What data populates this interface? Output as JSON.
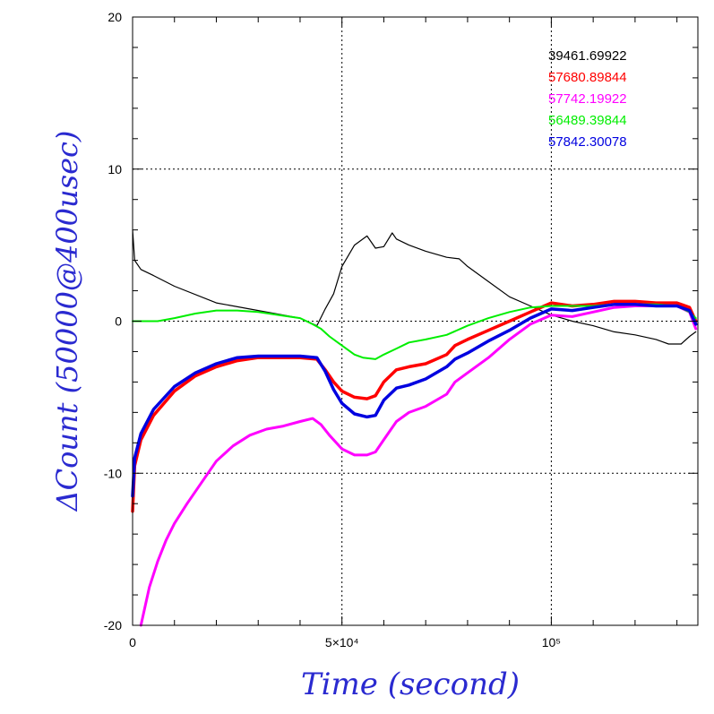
{
  "chart_data": {
    "type": "line",
    "title": "",
    "xlabel": "Time (second)",
    "ylabel": "ΔCount (50000@400usec)",
    "xlim": [
      0,
      135000
    ],
    "ylim": [
      -20,
      20
    ],
    "x_ticks": [
      {
        "value": 0,
        "label": "0"
      },
      {
        "value": 50000,
        "label": "5×10⁴"
      },
      {
        "value": 100000,
        "label": "10⁵"
      }
    ],
    "y_ticks": [
      {
        "value": -20,
        "label": "-20"
      },
      {
        "value": -10,
        "label": "-10"
      },
      {
        "value": 0,
        "label": "0"
      },
      {
        "value": 10,
        "label": "10"
      },
      {
        "value": 20,
        "label": "20"
      }
    ],
    "grid": true,
    "legend_position": "top-right",
    "series": [
      {
        "name": "39461.69922",
        "color": "#000000",
        "stroke_width": 1.2,
        "x": [
          0,
          500,
          2000,
          5000,
          10000,
          20000,
          30000,
          40000,
          44000,
          46000,
          48000,
          50000,
          53000,
          56000,
          58000,
          60000,
          62000,
          63000,
          66000,
          70000,
          75000,
          78000,
          80000,
          85000,
          90000,
          95000,
          100000,
          105000,
          110000,
          115000,
          120000,
          125000,
          128000,
          131000,
          133000,
          134500
        ],
        "y": [
          6,
          4,
          3.4,
          3.0,
          2.3,
          1.2,
          0.7,
          0.2,
          -0.3,
          0.8,
          1.8,
          3.6,
          5.0,
          5.6,
          4.8,
          4.9,
          5.8,
          5.4,
          5.0,
          4.6,
          4.2,
          4.1,
          3.6,
          2.6,
          1.6,
          1.0,
          0.4,
          0.0,
          -0.3,
          -0.7,
          -0.9,
          -1.2,
          -1.5,
          -1.5,
          -1.0,
          -0.7
        ]
      },
      {
        "name": "57680.89844",
        "color": "#ff0000",
        "stroke_width": 3.5,
        "x": [
          0,
          500,
          2000,
          5000,
          10000,
          15000,
          20000,
          25000,
          30000,
          35000,
          40000,
          44000,
          46000,
          48000,
          50000,
          53000,
          56000,
          58000,
          60000,
          63000,
          66000,
          70000,
          75000,
          77000,
          80000,
          85000,
          90000,
          95000,
          100000,
          105000,
          110000,
          115000,
          120000,
          125000,
          130000,
          133000,
          134500
        ],
        "y": [
          -12.5,
          -9.5,
          -7.8,
          -6.2,
          -4.6,
          -3.6,
          -3.0,
          -2.6,
          -2.4,
          -2.4,
          -2.4,
          -2.5,
          -3.2,
          -4.0,
          -4.6,
          -5.0,
          -5.1,
          -4.9,
          -4.0,
          -3.2,
          -3.0,
          -2.8,
          -2.2,
          -1.6,
          -1.2,
          -0.6,
          0.0,
          0.6,
          1.2,
          1.0,
          1.1,
          1.3,
          1.3,
          1.2,
          1.2,
          0.9,
          0.0
        ]
      },
      {
        "name": "57742.19922",
        "color": "#ff00ff",
        "stroke_width": 3,
        "x": [
          2000,
          4000,
          6000,
          8000,
          10000,
          13000,
          16000,
          20000,
          24000,
          28000,
          32000,
          36000,
          40000,
          43000,
          45000,
          47000,
          50000,
          53000,
          56000,
          58000,
          60000,
          63000,
          66000,
          70000,
          75000,
          77000,
          80000,
          85000,
          90000,
          95000,
          100000,
          105000,
          110000,
          115000,
          120000,
          125000,
          130000,
          133000,
          134500
        ],
        "y": [
          -20,
          -17.5,
          -15.8,
          -14.4,
          -13.3,
          -12.0,
          -10.8,
          -9.2,
          -8.2,
          -7.5,
          -7.1,
          -6.9,
          -6.6,
          -6.4,
          -6.8,
          -7.5,
          -8.4,
          -8.8,
          -8.8,
          -8.6,
          -7.8,
          -6.6,
          -6.0,
          -5.6,
          -4.8,
          -4.0,
          -3.4,
          -2.4,
          -1.2,
          -0.2,
          0.4,
          0.3,
          0.6,
          0.9,
          1.0,
          1.0,
          1.0,
          0.6,
          -0.5
        ]
      },
      {
        "name": "56489.39844",
        "color": "#00ee00",
        "stroke_width": 2,
        "x": [
          0,
          3000,
          6000,
          10000,
          15000,
          20000,
          25000,
          30000,
          35000,
          40000,
          43000,
          45000,
          47000,
          50000,
          53000,
          55000,
          58000,
          60000,
          63000,
          66000,
          70000,
          75000,
          80000,
          85000,
          90000,
          95000,
          100000,
          105000,
          110000,
          115000,
          120000,
          125000,
          130000,
          133000,
          134500
        ],
        "y": [
          0,
          0,
          0,
          0.2,
          0.5,
          0.7,
          0.7,
          0.6,
          0.4,
          0.2,
          -0.2,
          -0.5,
          -1.0,
          -1.6,
          -2.2,
          -2.4,
          -2.5,
          -2.2,
          -1.8,
          -1.4,
          -1.2,
          -0.9,
          -0.3,
          0.2,
          0.6,
          0.9,
          1.0,
          1.0,
          1.0,
          1.1,
          1.1,
          1.1,
          1.0,
          0.6,
          0.2
        ]
      },
      {
        "name": "57842.30078",
        "color": "#0000e0",
        "stroke_width": 3.5,
        "x": [
          0,
          500,
          2000,
          5000,
          10000,
          15000,
          20000,
          25000,
          30000,
          35000,
          40000,
          44000,
          46000,
          48000,
          50000,
          53000,
          56000,
          58000,
          60000,
          63000,
          66000,
          70000,
          75000,
          77000,
          80000,
          85000,
          90000,
          95000,
          100000,
          105000,
          110000,
          115000,
          120000,
          125000,
          130000,
          133000,
          134500
        ],
        "y": [
          -11.5,
          -9.0,
          -7.4,
          -5.8,
          -4.3,
          -3.4,
          -2.8,
          -2.4,
          -2.3,
          -2.3,
          -2.3,
          -2.4,
          -3.3,
          -4.5,
          -5.4,
          -6.1,
          -6.3,
          -6.2,
          -5.2,
          -4.4,
          -4.2,
          -3.8,
          -3.0,
          -2.5,
          -2.1,
          -1.3,
          -0.6,
          0.2,
          0.8,
          0.7,
          0.9,
          1.1,
          1.1,
          1.0,
          1.0,
          0.7,
          -0.2
        ]
      }
    ]
  }
}
